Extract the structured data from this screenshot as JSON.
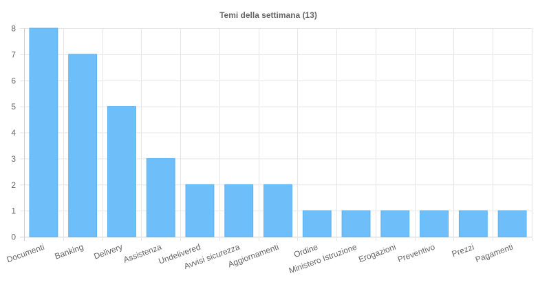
{
  "chart_data": {
    "type": "bar",
    "title": "Temi della settimana (13)",
    "xlabel": "",
    "ylabel": "",
    "categories": [
      "Documenti",
      "Banking",
      "Delivery",
      "Assistenza",
      "Undelivered",
      "Avvisi sicurezza",
      "Aggiornamenti",
      "Ordine",
      "Ministero Istruzione",
      "Erogazioni",
      "Preventivo",
      "Prezzi",
      "Pagamenti"
    ],
    "values": [
      8,
      7,
      5,
      3,
      2,
      2,
      2,
      1,
      1,
      1,
      1,
      1,
      1
    ],
    "ylim": [
      0,
      8
    ],
    "yticks": [
      0,
      1,
      2,
      3,
      4,
      5,
      6,
      7,
      8
    ],
    "grid": true,
    "legend": "none",
    "colors": {
      "bar": "#6ebff9",
      "bar_border": "#5ab0f0",
      "grid": "#e6e6e6",
      "text": "#666666"
    }
  }
}
